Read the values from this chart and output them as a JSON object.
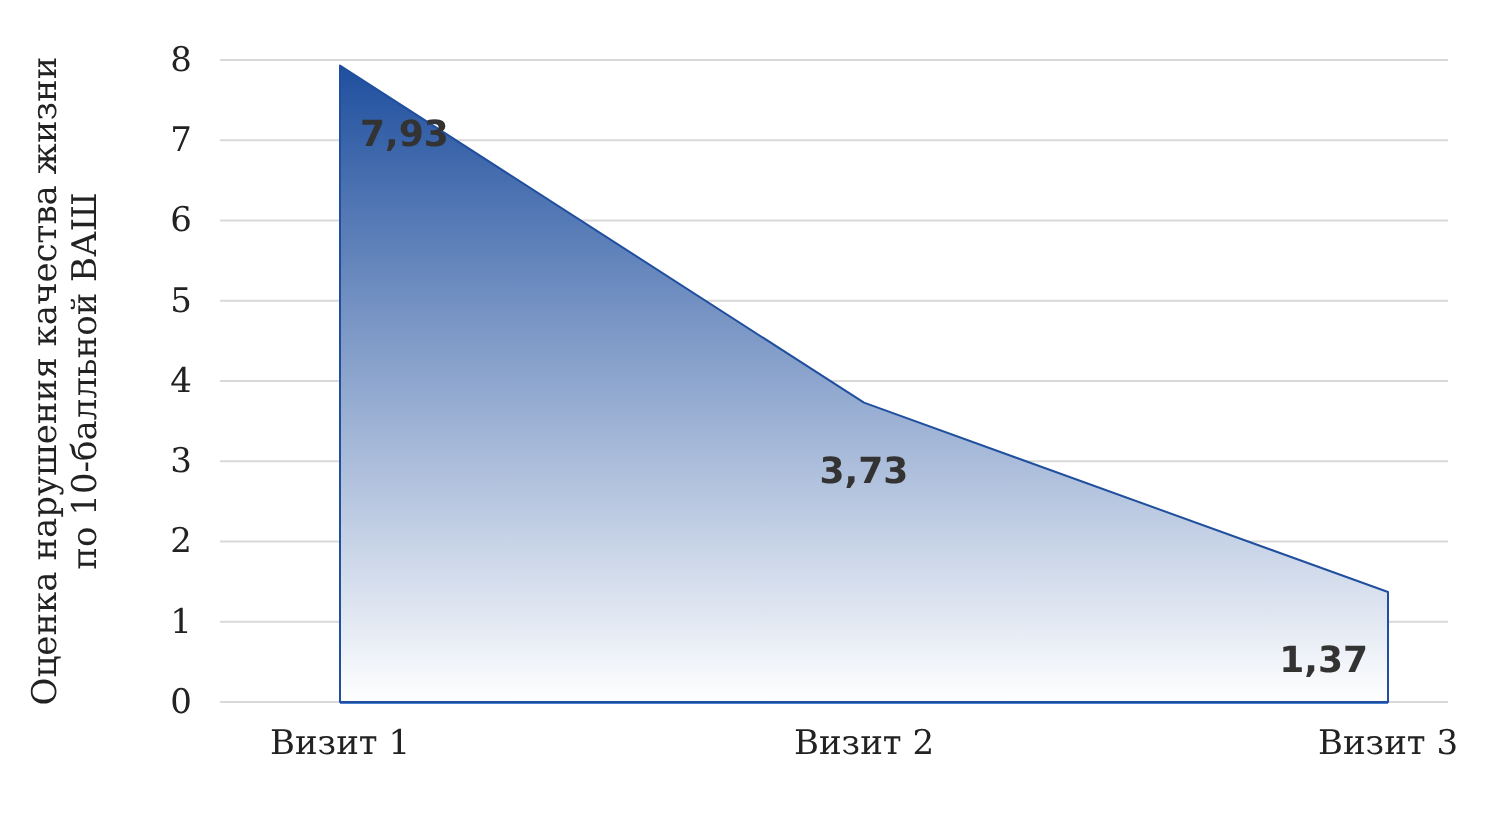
{
  "chart_data": {
    "type": "area",
    "ylabel": "Оценка нарушения качества жизни по 10-балльной ВАШ",
    "categories": [
      "Визит 1",
      "Визит 2",
      "Визит 3"
    ],
    "series": [
      {
        "color": "#1f4f9e",
        "values": [
          7.93,
          3.73,
          1.37
        ],
        "value_labels": [
          "7,93",
          "3,73",
          "1,37"
        ]
      }
    ],
    "ylim": [
      0,
      8
    ],
    "yticks": [
      0,
      1,
      2,
      3,
      4,
      5,
      6,
      7,
      8
    ],
    "grid": "y"
  }
}
